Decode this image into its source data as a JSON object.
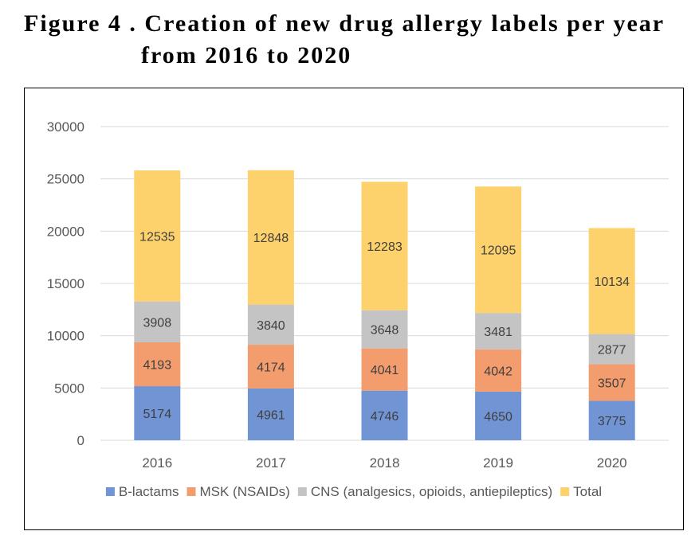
{
  "figure": {
    "title_line1": "Figure 4 . Creation of new drug allergy labels per year",
    "title_line2": "from 2016 to 2020"
  },
  "chart_data": {
    "type": "bar",
    "stacked": true,
    "categories": [
      "2016",
      "2017",
      "2018",
      "2019",
      "2020"
    ],
    "ylim": [
      0,
      30000
    ],
    "yticks": [
      "0",
      "5000",
      "10000",
      "15000",
      "20000",
      "25000",
      "30000"
    ],
    "grid": true,
    "legend_position": "bottom",
    "series": [
      {
        "name": "B-lactams",
        "color": "#7094D4",
        "values": [
          5174,
          4961,
          4746,
          4650,
          3775
        ]
      },
      {
        "name": "MSK (NSAIDs)",
        "color": "#F39C6E",
        "values": [
          4193,
          4174,
          4041,
          4042,
          3507
        ]
      },
      {
        "name": "CNS (analgesics, opioids, antiepileptics)",
        "color": "#C4C4C4",
        "values": [
          3908,
          3840,
          3648,
          3481,
          2877
        ]
      },
      {
        "name": "Total",
        "color": "#FDD16B",
        "values": [
          12535,
          12848,
          12283,
          12095,
          10134
        ]
      }
    ]
  }
}
